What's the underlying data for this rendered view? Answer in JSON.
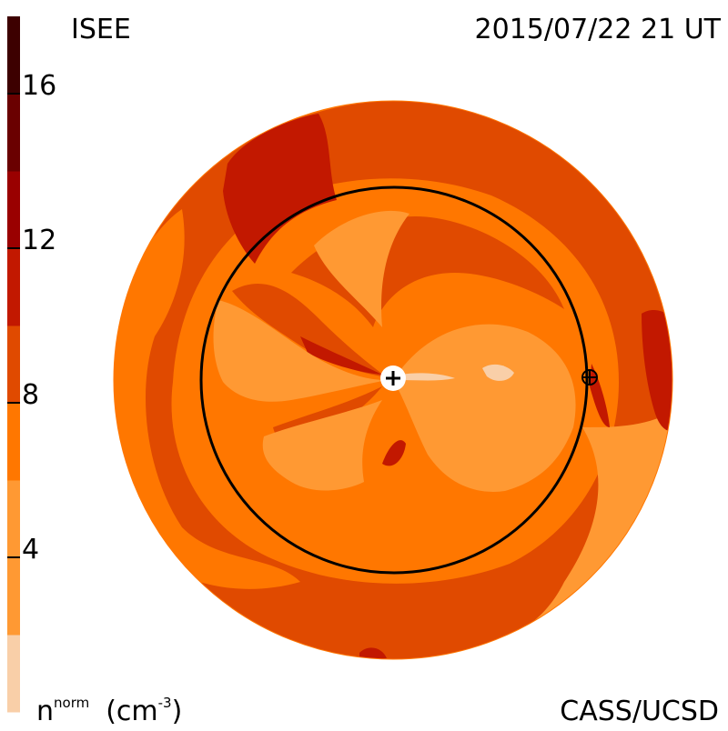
{
  "header": {
    "source_label": "ISEE",
    "timestamp": "2015/07/22 21 UT"
  },
  "footer": {
    "credit": "CASS/UCSD"
  },
  "colorbar": {
    "quantity_symbol": "n",
    "quantity_superscript": "norm",
    "unit_open": "(cm",
    "unit_exponent": "-3",
    "unit_close": ")",
    "ticks": [
      {
        "label": "16",
        "value": 16
      },
      {
        "label": "12",
        "value": 12
      },
      {
        "label": "8",
        "value": 8
      },
      {
        "label": "4",
        "value": 4
      }
    ],
    "range": [
      0,
      18
    ],
    "levels": [
      {
        "from": 0,
        "to": 2,
        "color": "#f9cfa8"
      },
      {
        "from": 2,
        "to": 6,
        "color": "#ff9933"
      },
      {
        "from": 6,
        "to": 8,
        "color": "#ff7700"
      },
      {
        "from": 8,
        "to": 10,
        "color": "#e04a00"
      },
      {
        "from": 10,
        "to": 12,
        "color": "#c21800"
      },
      {
        "from": 12,
        "to": 14,
        "color": "#9a0000"
      },
      {
        "from": 14,
        "to": 16,
        "color": "#6a0000"
      },
      {
        "from": 16,
        "to": 18,
        "color": "#3d0000"
      }
    ]
  },
  "map": {
    "sun_marker": "+",
    "earth_marker": "⊕",
    "orbit_ring": "Earth orbit"
  }
}
